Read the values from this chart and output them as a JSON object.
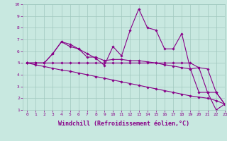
{
  "xlabel": "Windchill (Refroidissement éolien,°C)",
  "xlim": [
    -0.5,
    23
  ],
  "ylim": [
    1,
    10
  ],
  "xticks": [
    0,
    1,
    2,
    3,
    4,
    5,
    6,
    7,
    8,
    9,
    10,
    11,
    12,
    13,
    14,
    15,
    16,
    17,
    18,
    19,
    20,
    21,
    22,
    23
  ],
  "yticks": [
    1,
    2,
    3,
    4,
    5,
    6,
    7,
    8,
    9,
    10
  ],
  "bg_color": "#c8e8e0",
  "grid_color": "#a0c8be",
  "line_color": "#880088",
  "series": [
    [
      5.0,
      5.0,
      5.0,
      5.8,
      6.8,
      6.6,
      6.2,
      5.8,
      5.4,
      4.8,
      6.4,
      5.6,
      7.8,
      9.6,
      8.0,
      7.8,
      6.2,
      6.2,
      7.5,
      4.5,
      2.5,
      2.5,
      1.0,
      1.5
    ],
    [
      5.0,
      5.0,
      5.0,
      5.8,
      6.8,
      6.4,
      6.2,
      5.5,
      5.5,
      5.2,
      5.3,
      5.3,
      5.2,
      5.2,
      5.1,
      5.0,
      4.85,
      4.75,
      4.6,
      4.5,
      4.6,
      4.5,
      2.5,
      1.5
    ],
    [
      5.0,
      5.0,
      5.0,
      5.0,
      5.0,
      5.0,
      5.0,
      5.0,
      5.0,
      5.0,
      5.0,
      5.0,
      5.0,
      5.0,
      5.0,
      5.0,
      5.0,
      5.0,
      5.0,
      5.0,
      4.6,
      2.5,
      2.5,
      1.5
    ],
    [
      5.0,
      4.85,
      4.7,
      4.55,
      4.4,
      4.3,
      4.15,
      4.0,
      3.85,
      3.7,
      3.55,
      3.4,
      3.25,
      3.1,
      2.95,
      2.8,
      2.65,
      2.5,
      2.35,
      2.2,
      2.1,
      2.0,
      1.8,
      1.5
    ]
  ],
  "line_width": 0.8,
  "marker": "D",
  "marker_size": 1.8,
  "tick_fontsize": 4.5,
  "label_fontsize": 6.0,
  "fig_bg": "#c8e8e0"
}
